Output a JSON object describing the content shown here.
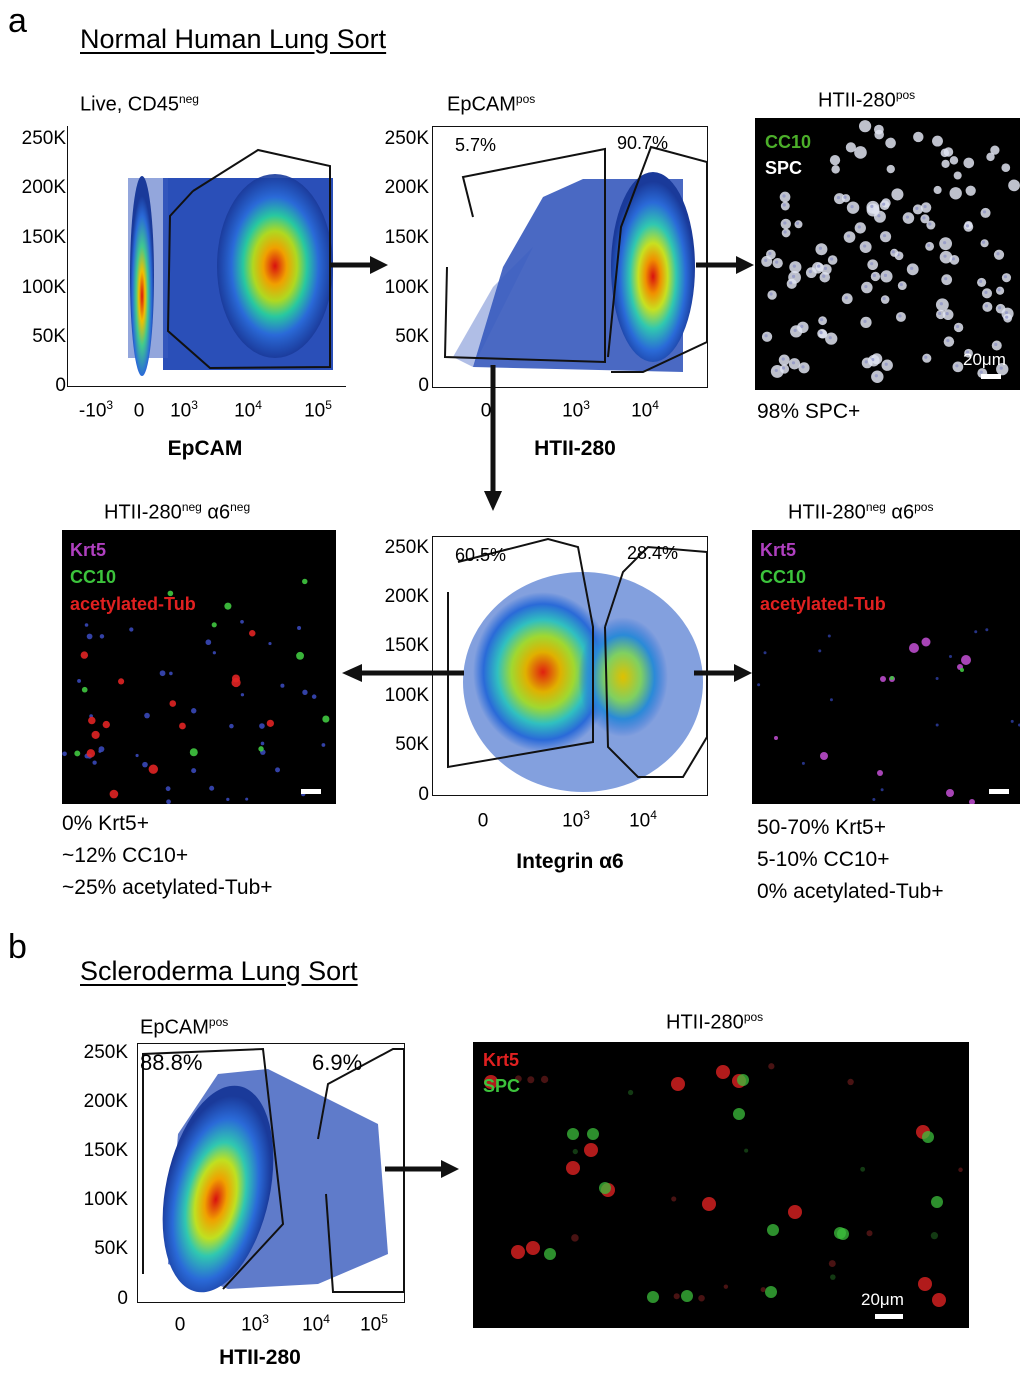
{
  "panel_a": {
    "letter": "a",
    "title": "Normal Human Lung Sort",
    "plot1": {
      "title": "Live, CD45",
      "title_sup": "neg",
      "y_ticks": [
        "250K",
        "200K",
        "150K",
        "100K",
        "50K",
        "0"
      ],
      "x_ticks": [
        {
          "base": "-10",
          "sup": "3"
        },
        {
          "base": "0",
          "sup": ""
        },
        {
          "base": "10",
          "sup": "3"
        },
        {
          "base": "10",
          "sup": "4"
        },
        {
          "base": "10",
          "sup": "5"
        }
      ],
      "xlabel": "EpCAM"
    },
    "plot2": {
      "title": "EpCAM",
      "title_sup": "pos",
      "y_ticks": [
        "250K",
        "200K",
        "150K",
        "100K",
        "50K",
        "0"
      ],
      "x_ticks": [
        {
          "base": "0",
          "sup": ""
        },
        {
          "base": "10",
          "sup": "3"
        },
        {
          "base": "10",
          "sup": "4"
        }
      ],
      "xlabel": "HTII-280",
      "gate_left_pct": "5.7%",
      "gate_right_pct": "90.7%"
    },
    "image1": {
      "title": "HTII-280",
      "title_sup": "pos",
      "channels": [
        {
          "name": "CC10",
          "color": "#4caf2a"
        },
        {
          "name": "SPC",
          "color": "#ffffff"
        }
      ],
      "scale_label": "20μm",
      "stats": [
        "98% SPC+"
      ]
    },
    "plot3": {
      "y_ticks": [
        "250K",
        "200K",
        "150K",
        "100K",
        "50K",
        "0"
      ],
      "x_ticks": [
        {
          "base": "0",
          "sup": ""
        },
        {
          "base": "10",
          "sup": "3"
        },
        {
          "base": "10",
          "sup": "4"
        }
      ],
      "xlabel": "Integrin α6",
      "gate_left_pct": "60.5%",
      "gate_right_pct": "28.4%"
    },
    "image_left": {
      "title": "HTII-280",
      "title_sup1": "neg",
      "title_mid": " α6",
      "title_sup2": "neg",
      "channels": [
        {
          "name": "Krt5",
          "color": "#b040c0"
        },
        {
          "name": "CC10",
          "color": "#3cc33c"
        },
        {
          "name": "acetylated-Tub",
          "color": "#e02020"
        }
      ],
      "stats": [
        "0% Krt5+",
        "~12% CC10+",
        "~25% acetylated-Tub+"
      ]
    },
    "image_right": {
      "title": "HTII-280",
      "title_sup1": "neg",
      "title_mid": " α6",
      "title_sup2": "pos",
      "channels": [
        {
          "name": "Krt5",
          "color": "#b040c0"
        },
        {
          "name": "CC10",
          "color": "#3cc33c"
        },
        {
          "name": "acetylated-Tub",
          "color": "#e02020"
        }
      ],
      "stats": [
        "50-70% Krt5+",
        "5-10% CC10+",
        "0% acetylated-Tub+"
      ]
    }
  },
  "panel_b": {
    "letter": "b",
    "title": "Scleroderma Lung Sort",
    "plot": {
      "title": "EpCAM",
      "title_sup": "pos",
      "y_ticks": [
        "250K",
        "200K",
        "150K",
        "100K",
        "50K",
        "0"
      ],
      "x_ticks": [
        {
          "base": "0",
          "sup": ""
        },
        {
          "base": "10",
          "sup": "3"
        },
        {
          "base": "10",
          "sup": "4"
        },
        {
          "base": "10",
          "sup": "5"
        }
      ],
      "xlabel": "HTII-280",
      "gate_left_pct": "88.8%",
      "gate_right_pct": "6.9%"
    },
    "image": {
      "title": "HTII-280",
      "title_sup": "pos",
      "channels": [
        {
          "name": "Krt5",
          "color": "#e02020"
        },
        {
          "name": "SPC",
          "color": "#3cc33c"
        }
      ],
      "scale_label": "20μm"
    }
  }
}
